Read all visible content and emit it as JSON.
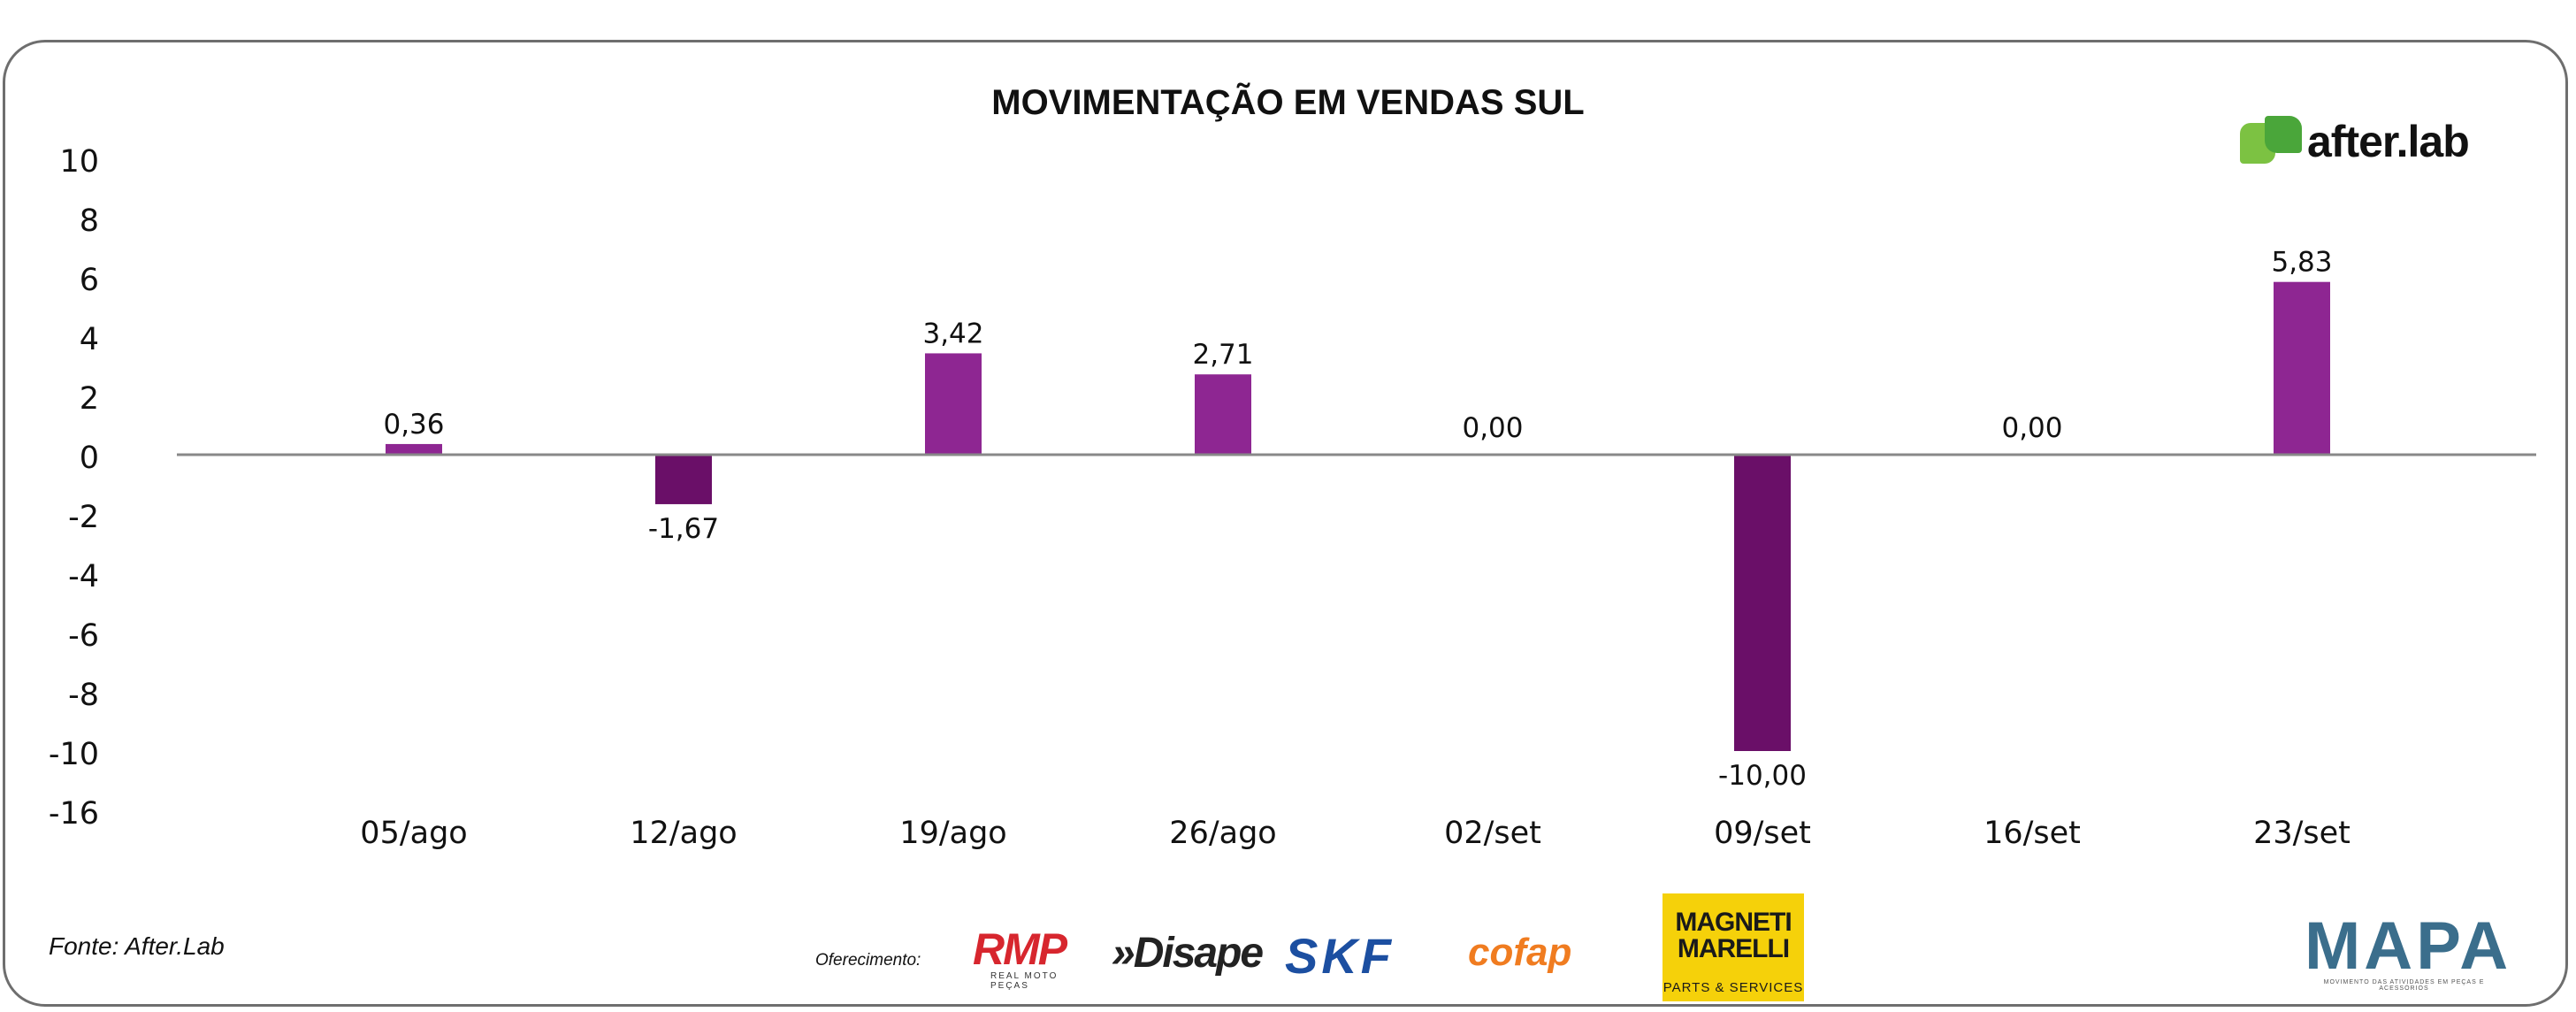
{
  "chart_data": {
    "type": "bar",
    "title": "MOVIMENTAÇÃO EM VENDAS SUL",
    "categories": [
      "05/ago",
      "12/ago",
      "19/ago",
      "26/ago",
      "02/set",
      "09/set",
      "16/set",
      "23/set"
    ],
    "values": [
      0.36,
      -1.67,
      3.42,
      2.71,
      0.0,
      -10.0,
      0.0,
      5.83
    ],
    "value_labels": [
      "0,36",
      "-1,67",
      "3,42",
      "2,71",
      "0,00",
      "-10,00",
      "0,00",
      "5,83"
    ],
    "y_ticks": [
      "10",
      "8",
      "6",
      "4",
      "2",
      "0",
      "-2",
      "-4",
      "-6",
      "-8",
      "-10",
      "-16"
    ],
    "colors": {
      "positive": "#8e2692",
      "negative": "#6a0f68",
      "axis": "#888888"
    },
    "grid": false,
    "legend": "none"
  },
  "brand": {
    "name": "after.lab",
    "icon": "after-lab-logo-icon"
  },
  "footer": {
    "source": "Fonte: After.Lab",
    "sponsor_label": "Oferecimento:",
    "sponsors": {
      "rmp": "RMP",
      "rmp_sub": "REAL MOTO PEÇAS",
      "disape": "»Disape",
      "skf": "SKF",
      "cofap": "cofap",
      "magneti_top": "MAGNETI MARELLI",
      "magneti_bottom": "PARTS & SERVICES",
      "mapa": "MAPA",
      "mapa_sub": "MOVIMENTO DAS ATIVIDADES EM PEÇAS E ACESSÓRIOS"
    }
  }
}
